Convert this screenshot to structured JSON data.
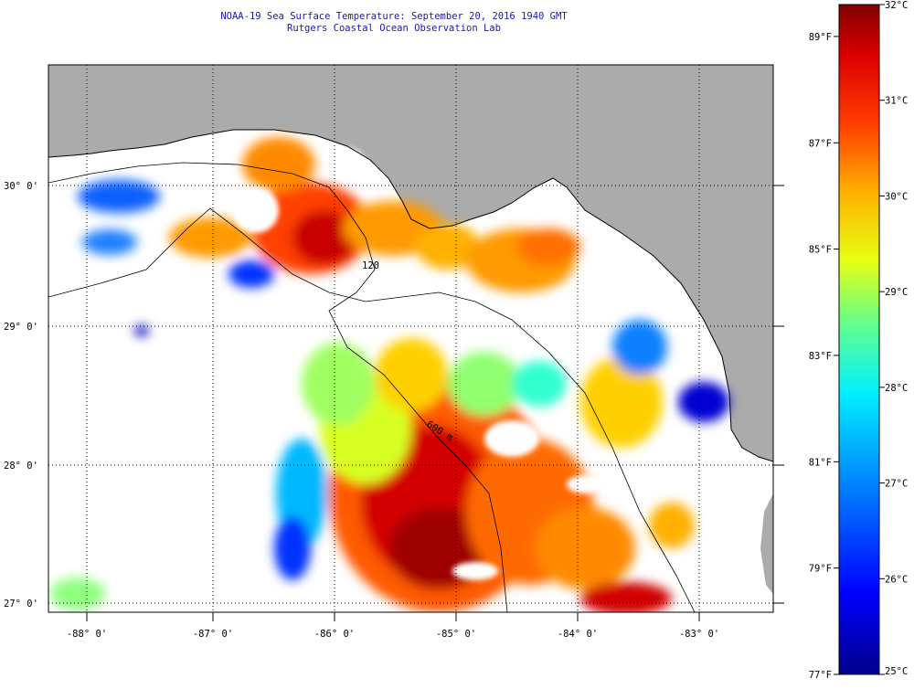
{
  "title": {
    "line1": "NOAA-19 Sea Surface Temperature:  September 20, 2016 1940 GMT",
    "line2": "Rutgers Coastal Ocean Observation Lab"
  },
  "map": {
    "lat_labels": [
      "30° 0'",
      "29° 0'",
      "28° 0'",
      "27° 0'"
    ],
    "lon_labels": [
      "-88° 0'",
      "-87° 0'",
      "-86° 0'",
      "-85° 0'",
      "-84° 0'",
      "-83° 0'"
    ],
    "contour_labels": [
      "120",
      "600 m"
    ],
    "colors": {
      "land": "#ababab",
      "cloud": "#ffffff"
    }
  },
  "colorbar": {
    "celsius": [
      {
        "label": "32°C",
        "value": 32
      },
      {
        "label": "31°C",
        "value": 31
      },
      {
        "label": "30°C",
        "value": 30
      },
      {
        "label": "29°C",
        "value": 29
      },
      {
        "label": "28°C",
        "value": 28
      },
      {
        "label": "27°C",
        "value": 27
      },
      {
        "label": "26°C",
        "value": 26
      },
      {
        "label": "25°C",
        "value": 25
      }
    ],
    "fahrenheit": [
      {
        "label": "89°F",
        "value": 89
      },
      {
        "label": "87°F",
        "value": 87
      },
      {
        "label": "85°F",
        "value": 85
      },
      {
        "label": "83°F",
        "value": 83
      },
      {
        "label": "81°F",
        "value": 81
      },
      {
        "label": "79°F",
        "value": 79
      },
      {
        "label": "77°F",
        "value": 77
      }
    ],
    "range_c": [
      25,
      32
    ]
  }
}
